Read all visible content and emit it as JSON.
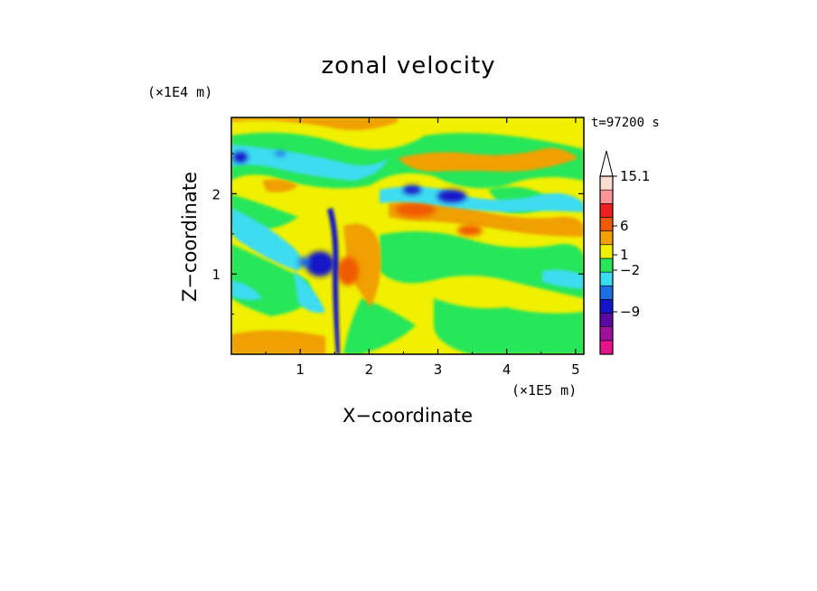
{
  "chart_data": {
    "type": "heatmap",
    "title": "zonal velocity",
    "xlabel": "X−coordinate",
    "ylabel": "Z−coordinate",
    "x_unit_label": "(×1E5 m)",
    "y_unit_label": "(×1E4 m)",
    "time_label": "t=97200 s",
    "xlim": [
      0,
      5.12
    ],
    "ylim": [
      0,
      2.95
    ],
    "x_ticks": [
      1,
      2,
      3,
      4,
      5
    ],
    "x_tick_labels": [
      "1",
      "2",
      "3",
      "4",
      "5"
    ],
    "y_ticks": [
      1,
      2
    ],
    "y_tick_labels": [
      "1",
      "2"
    ],
    "colorbar": {
      "levels": [
        -13,
        -9,
        -6,
        -2,
        -1,
        0,
        1,
        2,
        6,
        9,
        15.1
      ],
      "colors": [
        "#e8148c",
        "#a0109c",
        "#5a0aa0",
        "#1414c8",
        "#1e6ee6",
        "#3cdcf0",
        "#28e65a",
        "#f0f000",
        "#f0a000",
        "#f05a00",
        "#f02020",
        "#fa9696",
        "#ffdcd2"
      ],
      "labels": [
        "15.1",
        "6",
        "1",
        "−2",
        "−9"
      ],
      "extend": "max"
    },
    "features": [
      {
        "kind": "negative core",
        "x": 1.35,
        "z": 1.2,
        "value": -10
      },
      {
        "kind": "positive core",
        "x": 1.6,
        "z": 1.2,
        "value": 8
      },
      {
        "kind": "negative core",
        "x": 3.15,
        "z": 2.0,
        "value": -8
      },
      {
        "kind": "negative core",
        "x": 2.6,
        "z": 2.05,
        "value": -7
      },
      {
        "kind": "positive band",
        "x": 2.6,
        "z": 1.8,
        "value": 6
      }
    ]
  }
}
